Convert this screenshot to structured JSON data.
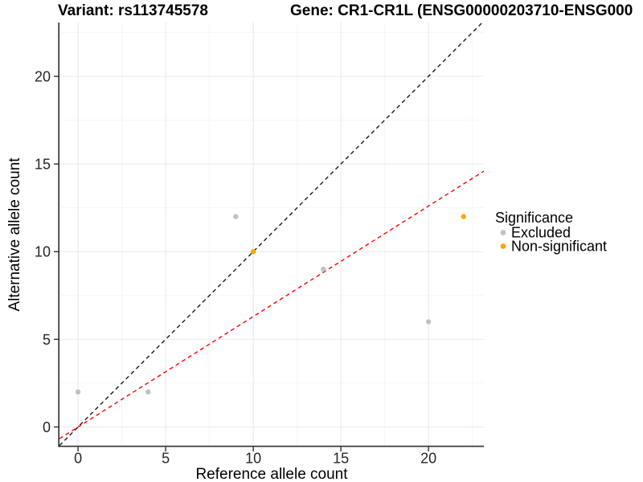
{
  "plot_titles": {
    "variant": "Variant: rs113745578",
    "gene": "Gene: CR1-CR1L (ENSG00000203710-ENSG000"
  },
  "chart_data": {
    "type": "scatter",
    "xlabel": "Reference allele count",
    "ylabel": "Alternative allele count",
    "xlim": [
      -1.06,
      23.16
    ],
    "ylim": [
      -1.1,
      23.07
    ],
    "x_ticks": [
      0,
      5,
      10,
      15,
      20
    ],
    "y_ticks": [
      0,
      5,
      10,
      15,
      20
    ],
    "minor_gridlines": [
      2.5,
      7.5,
      12.5,
      17.5,
      22.5
    ],
    "grid": true,
    "legend_position": "right",
    "legend_title": "Significance",
    "series": [
      {
        "name": "Excluded",
        "color": "#c2c2c2",
        "points": [
          [
            0,
            2
          ],
          [
            4,
            2
          ],
          [
            9,
            12
          ],
          [
            14,
            9
          ],
          [
            20,
            6
          ]
        ]
      },
      {
        "name": "Non-significant",
        "color": "#ffa500",
        "points": [
          [
            10,
            10
          ],
          [
            22,
            12
          ]
        ]
      }
    ],
    "lines": [
      {
        "name": "identity-line",
        "slope": 1,
        "intercept": 0,
        "color": "#1a1a1a",
        "dash": "5 4"
      },
      {
        "name": "fit-line",
        "slope": 0.63,
        "intercept": 0,
        "color": "#ff0000",
        "dash": "5 4"
      }
    ]
  },
  "colors": {
    "background": "#ffffff",
    "axis_line": "#2e2e2e",
    "grid_major": "#e9e9e9",
    "grid_minor": "#f4f4f4"
  }
}
